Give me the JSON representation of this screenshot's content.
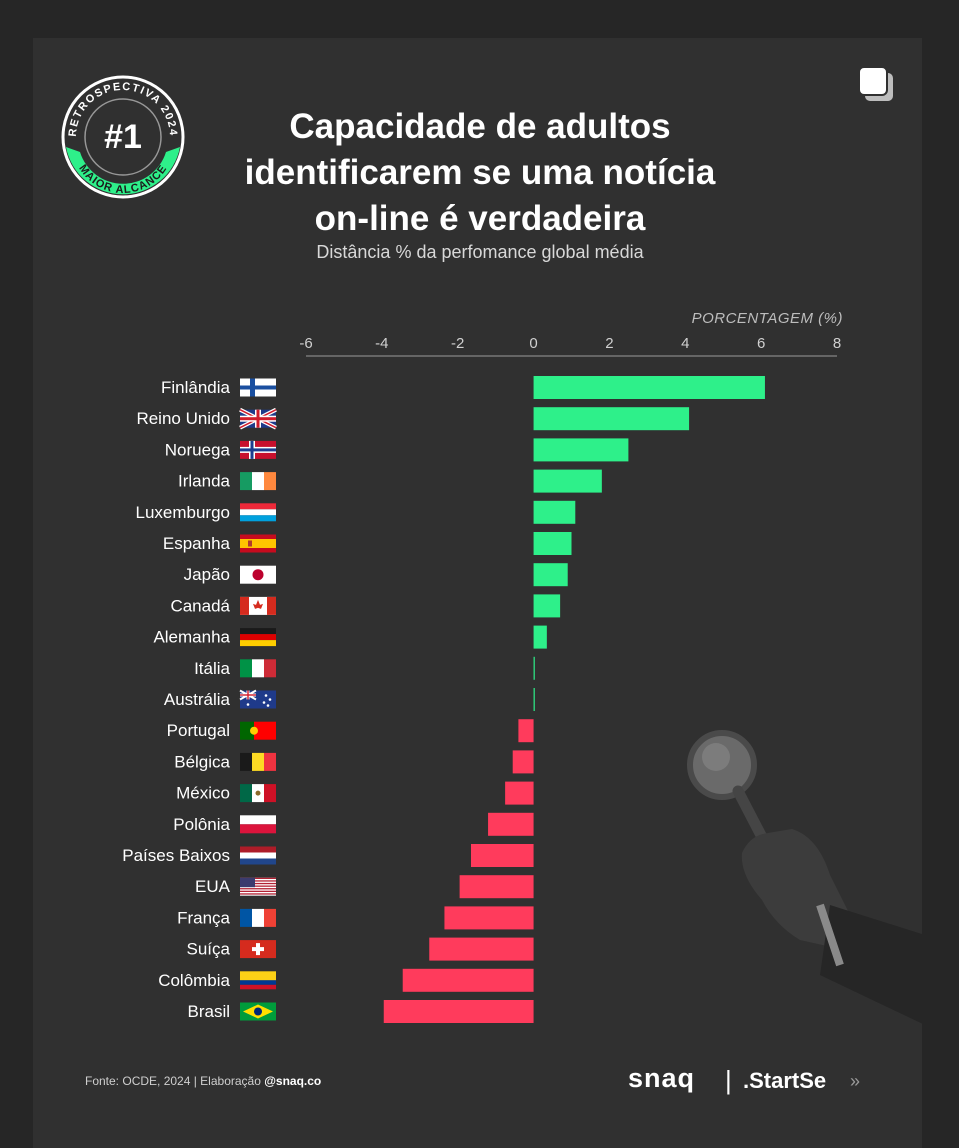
{
  "header": {
    "badge_top_text": "RETROSPECTIVA 2024",
    "badge_number": "#1",
    "badge_bottom_text": "MAIOR ALCANCE",
    "title_lines": [
      "Capacidade de adultos",
      "identificarem se uma notícia",
      "on-line é verdadeira"
    ],
    "subtitle": "Distância % da perfomance global média",
    "copy_icon": "copy-icon"
  },
  "chart_data": {
    "type": "bar",
    "orientation": "horizontal",
    "xlabel": "PORCENTAGEM (%)",
    "xlim": [
      -6,
      8
    ],
    "xticks": [
      "-6",
      "-4",
      "-2",
      "0",
      "2",
      "4",
      "6",
      "8"
    ],
    "grid": false,
    "categories": [
      "Finlândia",
      "Reino Unido",
      "Noruega",
      "Irlanda",
      "Luxemburgo",
      "Espanha",
      "Japão",
      "Canadá",
      "Alemanha",
      "Itália",
      "Austrália",
      "Portugal",
      "Bélgica",
      "México",
      "Polônia",
      "Países Baixos",
      "EUA",
      "França",
      "Suíça",
      "Colômbia",
      "Brasil"
    ],
    "values": [
      6.1,
      4.1,
      2.5,
      1.8,
      1.1,
      1.0,
      0.9,
      0.7,
      0.35,
      0.02,
      0.02,
      -0.4,
      -0.55,
      -0.75,
      -1.2,
      -1.65,
      -1.95,
      -2.35,
      -2.75,
      -3.45,
      -3.95
    ],
    "colors": {
      "positive": "#2ef08a",
      "negative": "#ff3b5c"
    }
  },
  "flags": [
    "finland-flag",
    "uk-flag",
    "norway-flag",
    "ireland-flag",
    "luxembourg-flag",
    "spain-flag",
    "japan-flag",
    "canada-flag",
    "germany-flag",
    "italy-flag",
    "australia-flag",
    "portugal-flag",
    "belgium-flag",
    "mexico-flag",
    "poland-flag",
    "netherlands-flag",
    "usa-flag",
    "france-flag",
    "switzerland-flag",
    "colombia-flag",
    "brazil-flag"
  ],
  "footer": {
    "source_prefix": "Fonte: OCDE, 2024 | Elaboração ",
    "source_handle": "@snaq.co",
    "logo_snaq": "snaq",
    "logo_separator": "|",
    "logo_startse": ".StartSe",
    "logo_arrow": "»"
  }
}
